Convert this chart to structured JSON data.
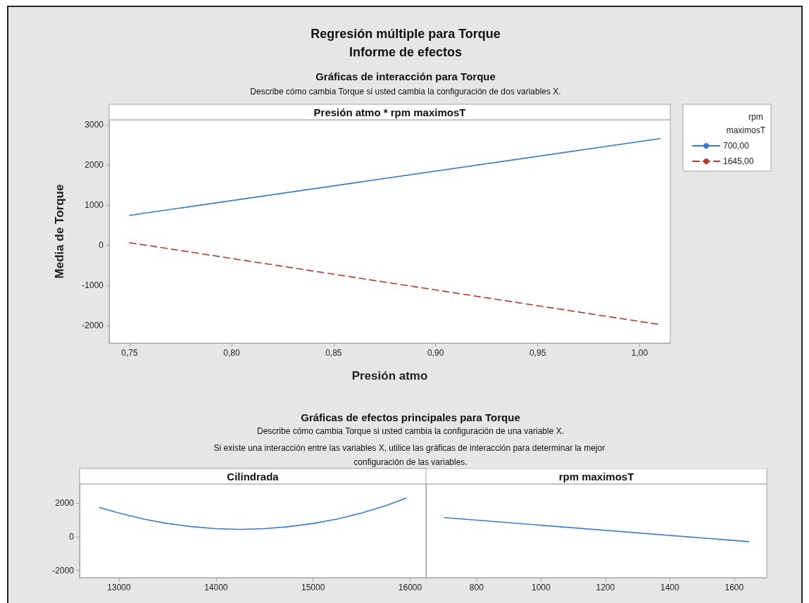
{
  "chart_data": [
    {
      "type": "line",
      "title": "Presión atmo * rpm maximosT",
      "annotations": [
        "Regresión múltiple para Torque",
        "Informe de efectos",
        "Gráficas de interacción para Torque",
        "Describe cómo cambia Torque si usted cambia la configuración de dos variables X."
      ],
      "xlabel": "Presión atmo",
      "ylabel": "Media de Torque",
      "legend_title": "rpm maximosT",
      "legend": "right",
      "marker": "none",
      "grid": false,
      "x": [
        0.75,
        1.01
      ],
      "series": [
        {
          "name": "700,00",
          "color": "#3a7bd0",
          "line_style": "solid",
          "values": [
            740,
            2650
          ]
        },
        {
          "name": "1645,00",
          "color": "#b03a30",
          "line_style": "dashed",
          "values": [
            60,
            -1980
          ]
        }
      ],
      "xlim": [
        0.74,
        1.015
      ],
      "xticks": [
        {
          "value": 0.75,
          "label": "0,75"
        },
        {
          "value": 0.8,
          "label": "0,80"
        },
        {
          "value": 0.85,
          "label": "0,85"
        },
        {
          "value": 0.9,
          "label": "0,90"
        },
        {
          "value": 0.95,
          "label": "0,95"
        },
        {
          "value": 1.0,
          "label": "1,00"
        }
      ],
      "ylim": [
        -2440,
        3120
      ],
      "yticks": [
        -2000,
        -1000,
        0,
        1000,
        2000,
        3000
      ]
    },
    {
      "type": "line",
      "title": "Cilindrada",
      "annotations": [
        "Gráficas de efectos principales para Torque",
        "Describe cómo cambia Torque si usted cambia la configuración de una variable X.",
        "Si existe una interacción entre las variables X, utilice las gráficas de interacción para determinar la mejor configuración de las variables."
      ],
      "marker": "none",
      "grid": false,
      "x": [
        12800,
        13000,
        13250,
        13500,
        13750,
        14000,
        14250,
        14500,
        14750,
        15000,
        15250,
        15500,
        15750,
        15960
      ],
      "series": [
        {
          "color": "#3a7bd0",
          "values": [
            1740,
            1410,
            1060,
            790,
            600,
            480,
            440,
            480,
            600,
            790,
            1060,
            1410,
            1850,
            2300
          ]
        }
      ],
      "xlim": [
        12594,
        16163
      ],
      "xticks": [
        13000,
        14000,
        15000,
        16000
      ],
      "ylim": [
        -2430,
        3140
      ],
      "yticks": [
        -2000,
        0,
        2000
      ]
    },
    {
      "type": "line",
      "title": "rpm maximosT",
      "marker": "none",
      "grid": false,
      "tick_labels": "x",
      "x": [
        700,
        1645
      ],
      "series": [
        {
          "color": "#3a7bd0",
          "values": [
            1140,
            -290
          ]
        }
      ],
      "xlim": [
        643,
        1701
      ],
      "xticks": [
        800,
        1000,
        1200,
        1400,
        1600
      ],
      "ylim": [
        -2430,
        3140
      ]
    }
  ]
}
